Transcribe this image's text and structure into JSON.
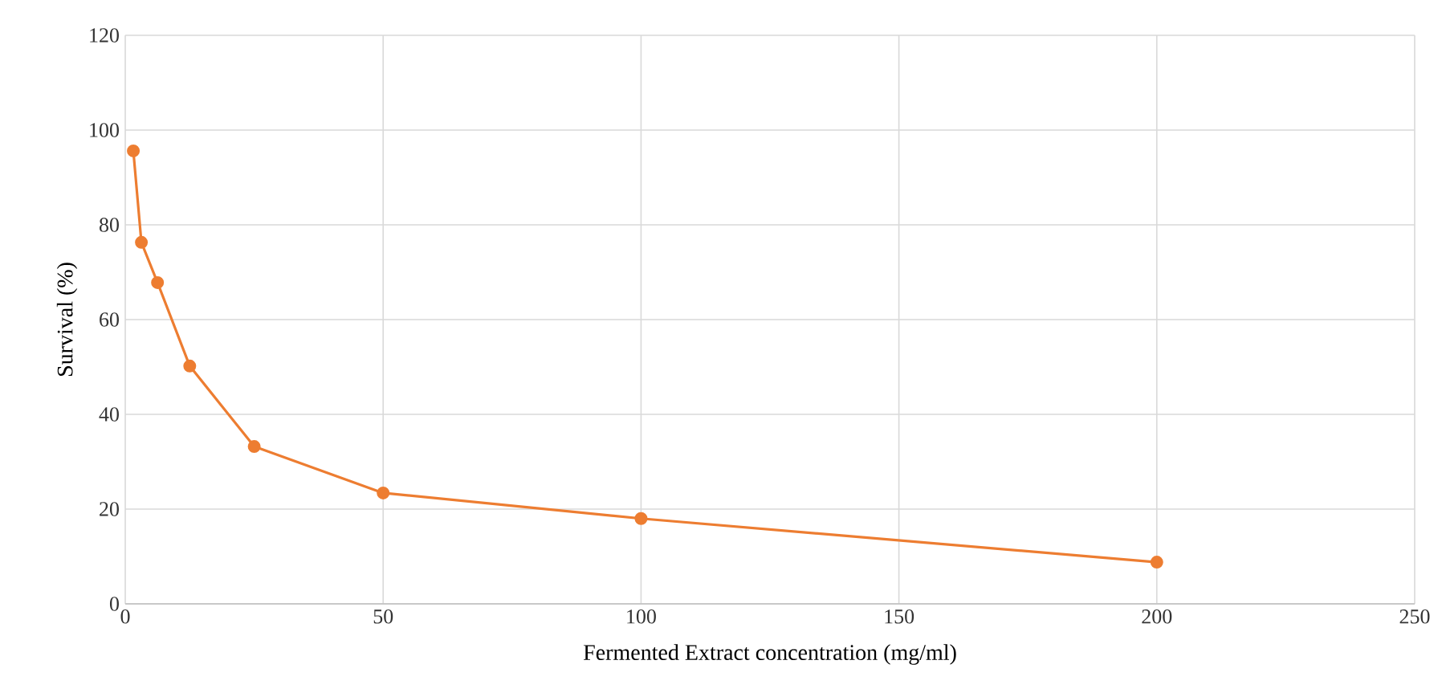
{
  "chart_data": {
    "type": "line",
    "xlabel": "Fermented Extract concentration (mg/ml)",
    "ylabel": "Survival (%)",
    "x": [
      1.5625,
      3.125,
      6.25,
      12.5,
      25,
      50,
      100,
      200
    ],
    "series": [
      {
        "color": "#ed7d31",
        "values": [
          95.6,
          76.3,
          67.8,
          50.2,
          33.2,
          23.4,
          18.0,
          8.8
        ]
      }
    ],
    "xlim": [
      0,
      250
    ],
    "ylim": [
      0,
      120
    ],
    "xticks": [
      0,
      50,
      100,
      150,
      200,
      250
    ],
    "yticks": [
      0,
      20,
      40,
      60,
      80,
      100,
      120
    ],
    "grid": true,
    "marker": "circle",
    "line_style": "solid"
  }
}
